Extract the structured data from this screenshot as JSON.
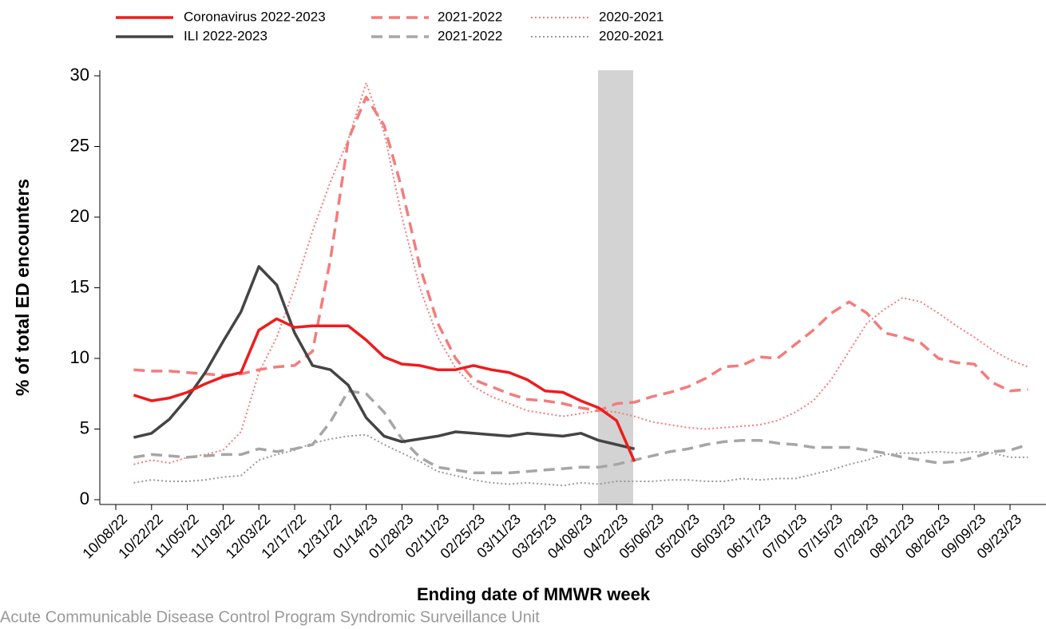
{
  "chart_data": {
    "type": "line",
    "y_label": "% of total ED encounters",
    "x_label": "Ending date of MMWR week",
    "source": "Acute Communicable Disease Control Program Syndromic Surveillance Unit",
    "categories": [
      "10/08/22",
      null,
      "10/22/22",
      null,
      "11/05/22",
      null,
      "11/19/22",
      null,
      "12/03/22",
      null,
      "12/17/22",
      null,
      "12/31/22",
      null,
      "01/14/23",
      null,
      "01/28/23",
      null,
      "02/11/23",
      null,
      "02/25/23",
      null,
      "03/11/23",
      null,
      "03/25/23",
      null,
      "04/08/23",
      null,
      "04/22/23",
      null,
      "05/06/23",
      null,
      "05/20/23",
      null,
      "06/03/23",
      null,
      "06/17/23",
      null,
      "07/01/23",
      null,
      "07/15/23",
      null,
      "07/29/23",
      null,
      "08/12/23",
      null,
      "08/26/23",
      null,
      "09/09/23",
      null,
      "09/23/23",
      null
    ],
    "ylim": [
      0,
      30
    ],
    "yticks": [
      0,
      5,
      10,
      15,
      20,
      25,
      30
    ],
    "series": [
      {
        "name": "Coronavirus 2022-2023",
        "color": "#ee1c1c",
        "dash": "solid",
        "values": [
          null,
          7.4,
          7.0,
          7.2,
          7.6,
          8.2,
          8.7,
          9.0,
          12.0,
          12.8,
          12.2,
          12.3,
          12.3,
          12.3,
          11.3,
          10.1,
          9.6,
          9.5,
          9.2,
          9.2,
          9.5,
          9.2,
          9.0,
          8.5,
          7.7,
          7.6,
          7.0,
          6.5,
          5.6,
          2.7,
          null,
          null,
          null,
          null,
          null,
          null,
          null,
          null,
          null,
          null,
          null,
          null,
          null,
          null,
          null,
          null,
          null,
          null,
          null,
          null,
          null,
          null
        ]
      },
      {
        "name": "ILI 2022-2023",
        "color": "#444444",
        "dash": "solid",
        "values": [
          null,
          4.4,
          4.7,
          5.7,
          7.2,
          9.0,
          11.2,
          13.3,
          16.5,
          15.2,
          11.8,
          9.5,
          9.2,
          8.1,
          5.8,
          4.5,
          4.1,
          4.3,
          4.5,
          4.8,
          4.7,
          4.6,
          4.5,
          4.7,
          4.6,
          4.5,
          4.7,
          4.2,
          3.9,
          3.6,
          null,
          null,
          null,
          null,
          null,
          null,
          null,
          null,
          null,
          null,
          null,
          null,
          null,
          null,
          null,
          null,
          null,
          null,
          null,
          null,
          null,
          null
        ]
      },
      {
        "name": "2021-2022",
        "color": "#f47c7c",
        "dash": "dashed",
        "values": [
          null,
          9.2,
          9.1,
          9.1,
          9.0,
          8.9,
          8.8,
          8.9,
          9.2,
          9.4,
          9.5,
          10.5,
          17,
          25.5,
          28.5,
          26.5,
          22,
          16.5,
          12.5,
          10,
          8.5,
          8.0,
          7.5,
          7.1,
          7.0,
          6.8,
          6.5,
          6.3,
          6.8,
          6.9,
          7.3,
          7.6,
          8.0,
          8.6,
          9.4,
          9.5,
          10.1,
          10.0,
          11.0,
          12.0,
          13.2,
          14.0,
          13.2,
          11.8,
          11.5,
          11.1,
          10.0,
          9.7,
          9.6,
          8.3,
          7.7,
          7.8
        ]
      },
      {
        "name": "2021-2022",
        "color": "#a6a6a6",
        "dash": "dashed",
        "values": [
          null,
          3.0,
          3.2,
          3.1,
          3.0,
          3.1,
          3.2,
          3.2,
          3.6,
          3.4,
          3.6,
          3.9,
          5.5,
          7.7,
          7.5,
          6.2,
          4.3,
          3.0,
          2.3,
          2.1,
          1.9,
          1.9,
          1.9,
          2.0,
          2.1,
          2.2,
          2.3,
          2.3,
          2.5,
          2.8,
          3.1,
          3.4,
          3.6,
          3.9,
          4.1,
          4.2,
          4.2,
          4.0,
          3.9,
          3.7,
          3.7,
          3.7,
          3.5,
          3.3,
          3.0,
          2.8,
          2.6,
          2.7,
          3.0,
          3.4,
          3.5,
          3.9
        ]
      },
      {
        "name": "2020-2021",
        "color": "#f47c7c",
        "dash": "dotted",
        "values": [
          null,
          2.5,
          2.8,
          2.6,
          3.0,
          3.2,
          3.5,
          4.8,
          9.0,
          11.5,
          15,
          19,
          22.5,
          25.5,
          29.5,
          26,
          20,
          15,
          11.5,
          9.3,
          8.0,
          7.3,
          6.8,
          6.3,
          6.1,
          5.9,
          6.1,
          6.3,
          6.2,
          5.9,
          5.5,
          5.3,
          5.1,
          5.0,
          5.1,
          5.2,
          5.3,
          5.6,
          6.2,
          7.0,
          8.5,
          10.5,
          12.5,
          13.5,
          14.3,
          14.0,
          13.2,
          12.3,
          11.5,
          10.6,
          9.9,
          9.4
        ]
      },
      {
        "name": "2020-2021",
        "color": "#999999",
        "dash": "dotted",
        "values": [
          null,
          1.2,
          1.4,
          1.3,
          1.3,
          1.4,
          1.6,
          1.7,
          2.8,
          3.2,
          3.5,
          4.0,
          4.3,
          4.5,
          4.6,
          3.9,
          3.3,
          2.7,
          2.0,
          1.7,
          1.4,
          1.2,
          1.1,
          1.2,
          1.1,
          1.0,
          1.2,
          1.1,
          1.3,
          1.3,
          1.3,
          1.4,
          1.4,
          1.3,
          1.3,
          1.5,
          1.4,
          1.5,
          1.5,
          1.8,
          2.1,
          2.5,
          2.8,
          3.2,
          3.3,
          3.3,
          3.4,
          3.3,
          3.4,
          3.3,
          3.0,
          3.0
        ]
      }
    ]
  }
}
